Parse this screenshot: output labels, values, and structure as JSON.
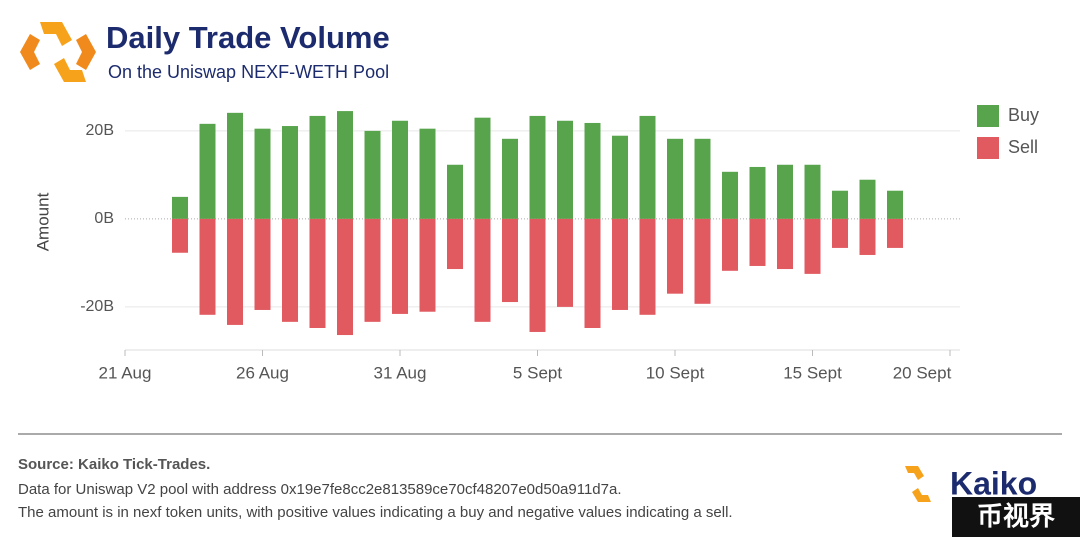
{
  "chart_data": {
    "type": "bar",
    "title": "Daily Trade Volume",
    "subtitle": "On the Uniswap NEXF-WETH Pool",
    "y_label": "Amount",
    "categories": [
      "21 Aug",
      null,
      null,
      null,
      null,
      "26 Aug",
      null,
      null,
      null,
      null,
      "31 Aug",
      null,
      null,
      null,
      null,
      "5 Sept",
      null,
      null,
      null,
      null,
      "10 Sept",
      null,
      null,
      null,
      null,
      "15 Sept",
      null,
      null,
      null,
      null,
      "20 Sept"
    ],
    "series": [
      {
        "name": "Buy",
        "color": "#58a44c",
        "values": [
          null,
          null,
          5.0,
          21.6,
          24.1,
          20.5,
          21.1,
          23.4,
          24.5,
          20.0,
          22.3,
          20.5,
          12.3,
          23.0,
          18.2,
          23.4,
          22.3,
          21.8,
          18.9,
          23.4,
          18.2,
          18.2,
          10.7,
          11.8,
          12.3,
          12.3,
          6.4,
          8.9,
          6.4,
          null,
          null
        ]
      },
      {
        "name": "Sell",
        "color": "#e05a60",
        "values": [
          null,
          null,
          -7.7,
          -21.8,
          -24.1,
          -20.7,
          -23.4,
          -24.8,
          -26.4,
          -23.4,
          -21.6,
          -21.1,
          -11.4,
          -23.4,
          -18.9,
          -25.7,
          -20.0,
          -24.8,
          -20.7,
          -21.8,
          -17.0,
          -19.3,
          -11.8,
          -10.7,
          -11.4,
          -12.5,
          -6.6,
          -8.2,
          -6.6,
          null,
          null
        ]
      }
    ],
    "ylim": [
      -29.8,
      25.2
    ],
    "yticks": [
      {
        "value": -20,
        "label": "-20B"
      },
      {
        "value": 0,
        "label": "0B"
      },
      {
        "value": 20,
        "label": "20B"
      }
    ],
    "grid": true,
    "legend": "top-right"
  },
  "footer": {
    "source": "Source: Kaiko Tick-Trades.",
    "notes": [
      "Data for Uniswap V2 pool with address 0x19e7fe8cc2e813589ce70cf48207e0d50a911d7a.",
      "The amount is in nexf token units, with positive values indicating a buy and negative values indicating a sell."
    ],
    "brand": "Kaiko",
    "watermark": "币视界"
  }
}
